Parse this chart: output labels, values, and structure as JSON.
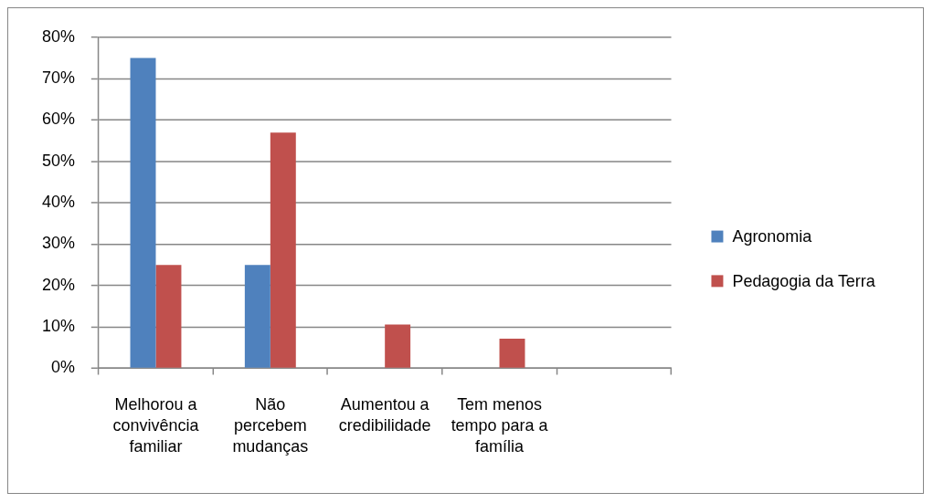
{
  "chart_data": {
    "type": "bar",
    "categories": [
      "Melhorou a convivência familiar",
      "Não percebem mudanças",
      "Aumentou a credibilidade",
      "Tem menos tempo para a família",
      null
    ],
    "series": [
      {
        "name": "Agronomia",
        "color": "#4f81bd",
        "values": [
          75,
          25,
          null,
          null,
          null
        ]
      },
      {
        "name": "Pedagogia da Terra",
        "color": "#c0504d",
        "values": [
          25,
          57,
          10.6,
          7.2,
          null
        ]
      }
    ],
    "ylim": [
      0,
      80
    ],
    "yticks": [
      {
        "value": 0,
        "label": "0%"
      },
      {
        "value": 10,
        "label": "10%"
      },
      {
        "value": 20,
        "label": "20%"
      },
      {
        "value": 30,
        "label": "30%"
      },
      {
        "value": 40,
        "label": "40%"
      },
      {
        "value": 50,
        "label": "50%"
      },
      {
        "value": 60,
        "label": "60%"
      },
      {
        "value": 70,
        "label": "70%"
      },
      {
        "value": 80,
        "label": "80%"
      }
    ],
    "grid": "y",
    "legend": "right"
  }
}
